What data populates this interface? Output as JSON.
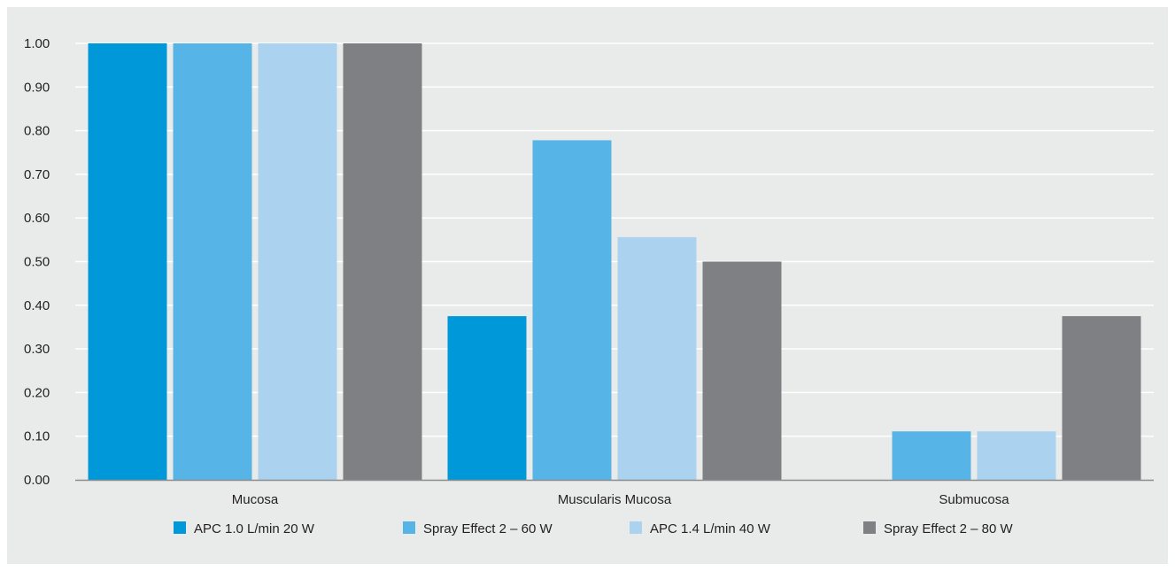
{
  "chart_data": {
    "type": "bar",
    "categories": [
      "Mucosa",
      "Muscularis Mucosa",
      "Submucosa"
    ],
    "series": [
      {
        "name": "APC 1.0 L/min 20 W",
        "color": "#0098d8",
        "values": [
          1.0,
          0.375,
          0.0
        ]
      },
      {
        "name": "Spray Effect 2 – 60 W",
        "color": "#56b4e6",
        "values": [
          1.0,
          0.778,
          0.111
        ]
      },
      {
        "name": "APC 1.4 L/min 40 W",
        "color": "#abd3f0",
        "values": [
          1.0,
          0.556,
          0.111
        ]
      },
      {
        "name": "Spray Effect 2 – 80 W",
        "color": "#7f8083",
        "values": [
          1.0,
          0.5,
          0.375
        ]
      }
    ],
    "y_ticks": [
      "0.00",
      "0.10",
      "0.20",
      "0.30",
      "0.40",
      "0.50",
      "0.60",
      "0.70",
      "0.80",
      "0.90",
      "1.00"
    ],
    "ylim": [
      0,
      1.0
    ],
    "grid": true,
    "legend_position": "bottom",
    "title": "",
    "xlabel": "",
    "ylabel": ""
  }
}
